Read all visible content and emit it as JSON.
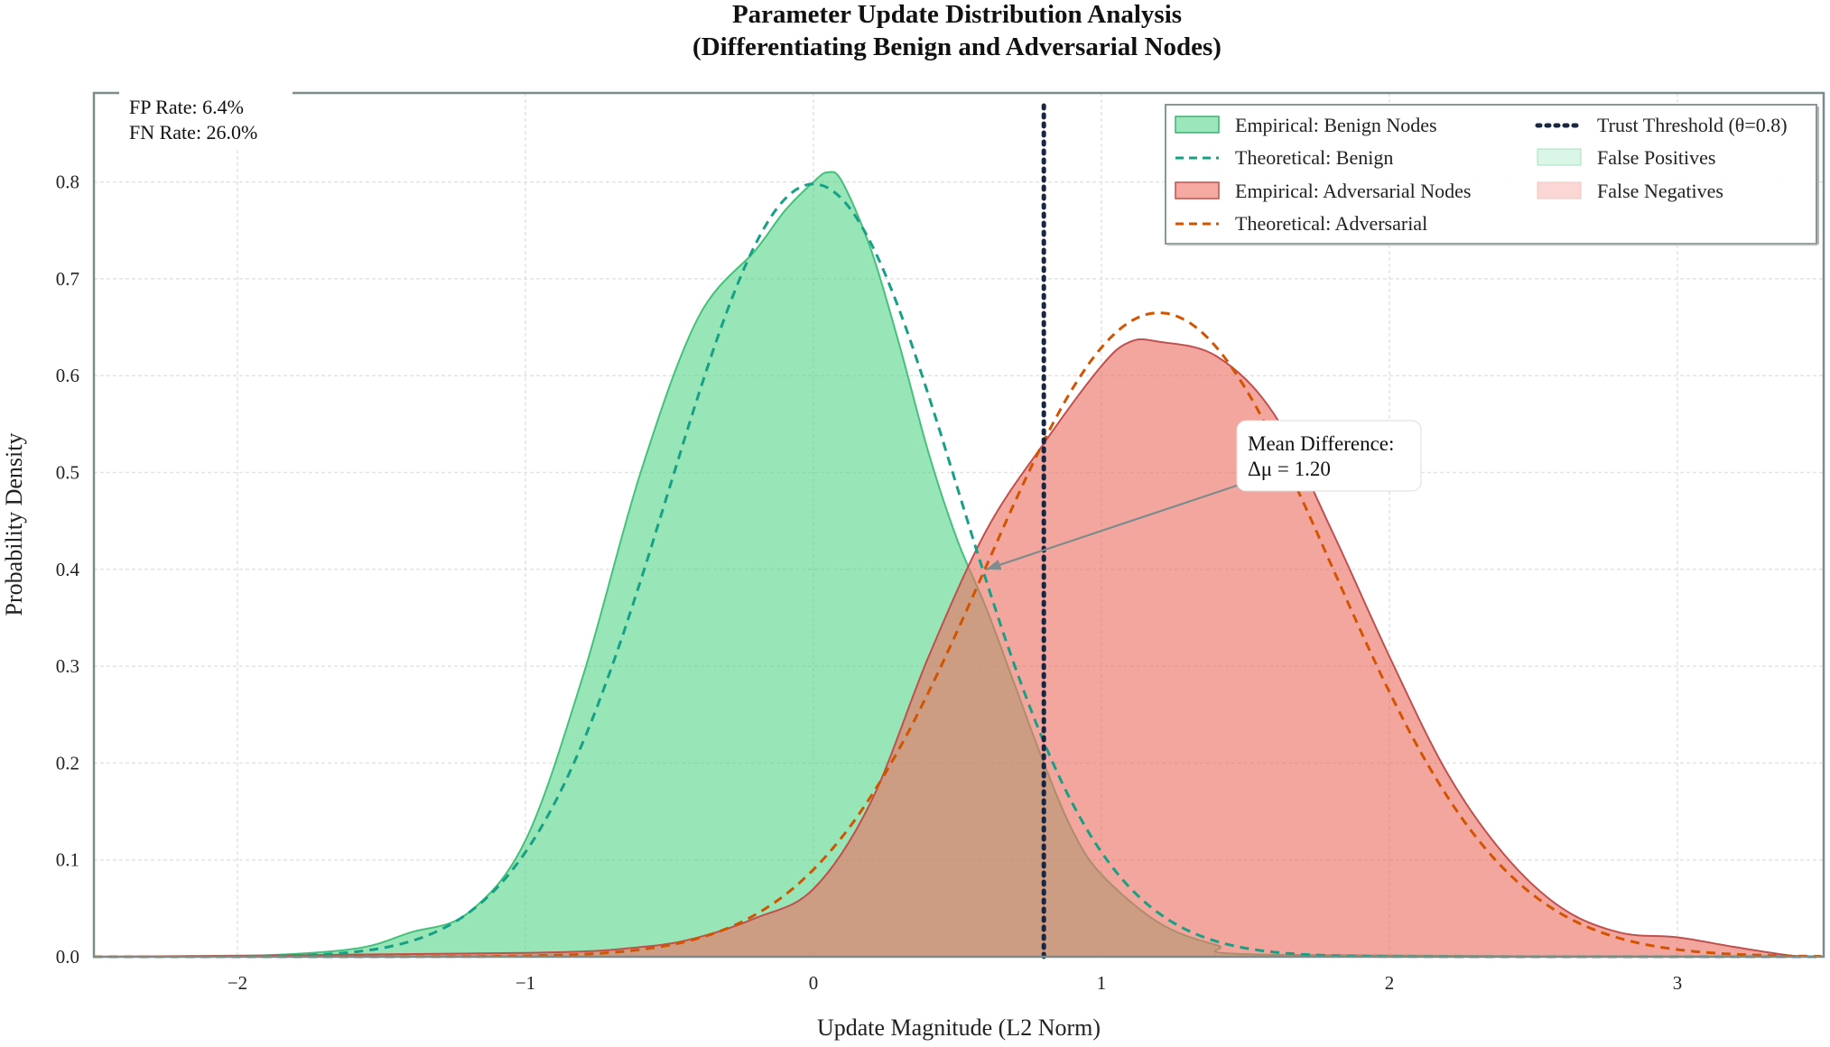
{
  "chart_data": {
    "type": "area",
    "title_line1": "Parameter Update Distribution Analysis",
    "title_line2": "(Differentiating Benign and Adversarial Nodes)",
    "xlabel": "Update Magnitude (L2 Norm)",
    "ylabel": "Probability Density",
    "xlim": [
      -2.5,
      3.5
    ],
    "ylim": [
      0,
      0.9
    ],
    "xticks": [
      -2,
      -1,
      0,
      1,
      2,
      3
    ],
    "xtick_labels": [
      "−2",
      "−1",
      "0",
      "1",
      "2",
      "3"
    ],
    "yticks": [
      0.0,
      0.1,
      0.2,
      0.3,
      0.4,
      0.5,
      0.6,
      0.7,
      0.8
    ],
    "ytick_labels": [
      "0.0",
      "0.1",
      "0.2",
      "0.3",
      "0.4",
      "0.5",
      "0.6",
      "0.7",
      "0.8"
    ],
    "grid": true,
    "legend_position": "top-right",
    "series": [
      {
        "name": "Empirical: Benign Nodes",
        "kind": "filled-area",
        "color": "#58d68d",
        "x": [
          -2.5,
          -2.0,
          -1.6,
          -1.4,
          -1.2,
          -1.0,
          -0.8,
          -0.6,
          -0.4,
          -0.2,
          -0.1,
          0.0,
          0.05,
          0.1,
          0.2,
          0.3,
          0.4,
          0.5,
          0.6,
          0.7,
          0.8,
          0.9,
          1.0,
          1.2,
          1.4,
          1.6,
          3.5
        ],
        "y": [
          0.0,
          0.0005,
          0.008,
          0.025,
          0.045,
          0.12,
          0.29,
          0.5,
          0.66,
          0.73,
          0.77,
          0.8,
          0.81,
          0.8,
          0.73,
          0.63,
          0.52,
          0.43,
          0.36,
          0.28,
          0.2,
          0.13,
          0.085,
          0.035,
          0.012,
          0.002,
          0.0
        ]
      },
      {
        "name": "Theoretical: Benign",
        "kind": "dashed-line",
        "color": "#16a085",
        "mean": 0.0,
        "std": 0.5
      },
      {
        "name": "Empirical: Adversarial Nodes",
        "kind": "filled-area",
        "color": "#ec7063",
        "x": [
          -2.5,
          -1.0,
          -0.6,
          -0.4,
          -0.2,
          0.0,
          0.2,
          0.4,
          0.6,
          0.8,
          1.0,
          1.1,
          1.2,
          1.4,
          1.6,
          1.8,
          2.0,
          2.2,
          2.4,
          2.6,
          2.8,
          3.0,
          3.2,
          3.4,
          3.5
        ],
        "y": [
          0.0,
          0.004,
          0.01,
          0.02,
          0.04,
          0.07,
          0.16,
          0.31,
          0.44,
          0.53,
          0.61,
          0.635,
          0.635,
          0.62,
          0.56,
          0.44,
          0.31,
          0.19,
          0.105,
          0.05,
          0.025,
          0.02,
          0.01,
          0.001,
          0.0
        ]
      },
      {
        "name": "Theoretical: Adversarial",
        "kind": "dashed-line",
        "color": "#d35400",
        "mean": 1.2,
        "std": 0.6
      },
      {
        "name": "Trust Threshold (θ=0.8)",
        "kind": "vertical-dotted-line",
        "color": "#1a2742",
        "x": 0.8
      },
      {
        "name": "False Positives",
        "kind": "shaded-region",
        "color": "#58d68d"
      },
      {
        "name": "False Negatives",
        "kind": "shaded-region",
        "color": "#f5b7b1"
      }
    ],
    "stats": {
      "fp": "FP Rate: 6.4%",
      "fn": "FN Rate: 26.0%"
    },
    "annotation": {
      "line1": "Mean Difference:",
      "line2": "Δμ = 1.20",
      "arrow_target": [
        0.6,
        0.4
      ]
    }
  }
}
